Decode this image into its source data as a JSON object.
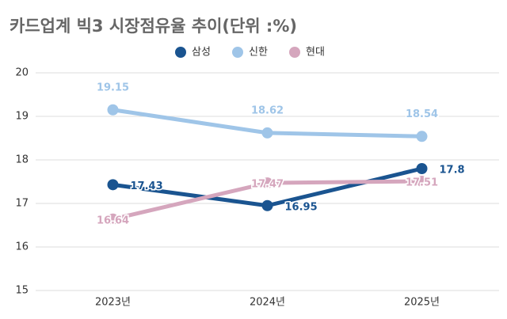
{
  "chart_data": {
    "type": "line",
    "title": "카드업계 빅3 시장점유율 추이(단위 :%)",
    "categories": [
      "2023년",
      "2024년",
      "2025년"
    ],
    "series": [
      {
        "name": "삼성",
        "color": "#1a5490",
        "values": [
          17.43,
          16.95,
          17.8
        ]
      },
      {
        "name": "신한",
        "color": "#9fc5e8",
        "values": [
          19.15,
          18.62,
          18.54
        ]
      },
      {
        "name": "현대",
        "color": "#d5a6bd",
        "values": [
          16.64,
          17.47,
          17.51
        ]
      }
    ],
    "ylim": [
      15,
      20
    ],
    "yticks": [
      15,
      16,
      17,
      18,
      19,
      20
    ],
    "grid": true,
    "legend": "top"
  }
}
